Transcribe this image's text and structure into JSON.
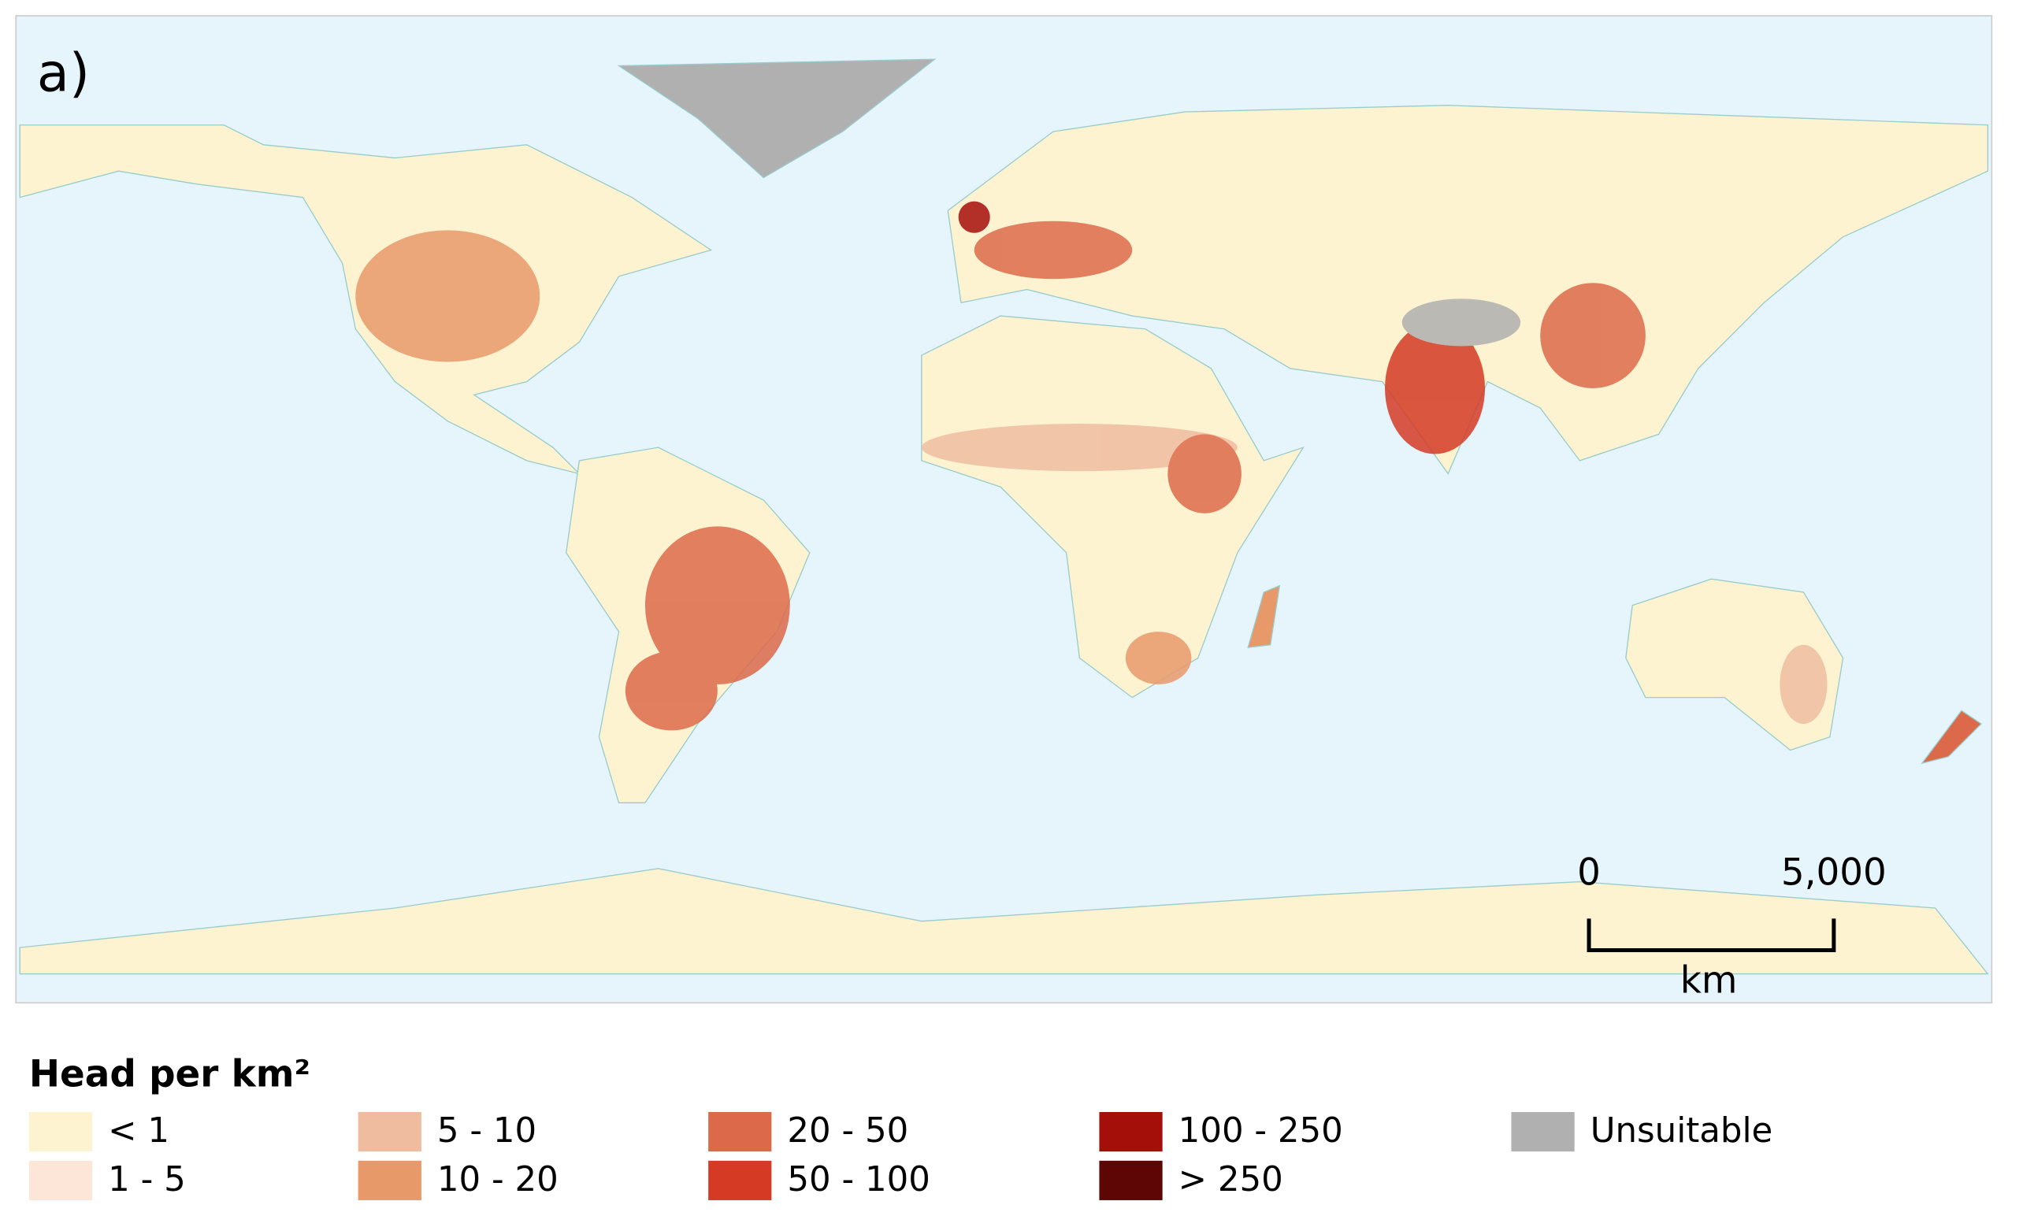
{
  "panel_label": "a)",
  "legend": {
    "title": "Head per km²",
    "items": [
      {
        "label": "< 1",
        "color": "#fdf3d0"
      },
      {
        "label": "1 - 5",
        "color": "#fde6d8"
      },
      {
        "label": "5 - 10",
        "color": "#efbca0"
      },
      {
        "label": "10 - 20",
        "color": "#e8996a"
      },
      {
        "label": "20 - 50",
        "color": "#dc6a4a"
      },
      {
        "label": "50 - 100",
        "color": "#d43a24"
      },
      {
        "label": "100 - 250",
        "color": "#a50f0a"
      },
      {
        "label": "> 250",
        "color": "#5e0505"
      },
      {
        "label": "Unsuitable",
        "color": "#b0b0b0"
      }
    ]
  },
  "scale_bar": {
    "start": "0",
    "end": "5,000",
    "unit": "km"
  }
}
